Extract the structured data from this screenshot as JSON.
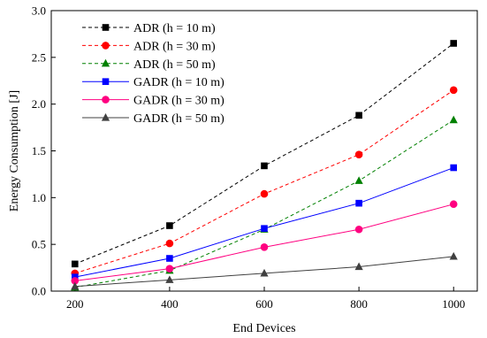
{
  "chart_data": {
    "type": "line",
    "title": "",
    "xlabel": "End Devices",
    "ylabel": "Energy Consumption [J]",
    "xlim": [
      150,
      1050
    ],
    "ylim": [
      0.0,
      3.0
    ],
    "x_ticks": [
      200,
      400,
      600,
      800,
      1000
    ],
    "y_ticks": [
      0.0,
      0.5,
      1.0,
      1.5,
      2.0,
      2.5,
      3.0
    ],
    "x_tick_labels": [
      "200",
      "400",
      "600",
      "800",
      "1000"
    ],
    "y_tick_labels": [
      "0.0",
      "0.5",
      "1.0",
      "1.5",
      "2.0",
      "2.5",
      "3.0"
    ],
    "grid": false,
    "legend_position": "top-left",
    "x": [
      200,
      400,
      600,
      800,
      1000
    ],
    "series": [
      {
        "name": "ADR (h = 10 m)",
        "values": [
          0.29,
          0.7,
          1.34,
          1.88,
          2.65
        ],
        "color": "#000000",
        "marker": "square",
        "dashed": true
      },
      {
        "name": "ADR (h = 30 m)",
        "values": [
          0.19,
          0.51,
          1.04,
          1.46,
          2.15
        ],
        "color": "#ff0000",
        "marker": "circle",
        "dashed": true
      },
      {
        "name": "ADR (h = 50 m)",
        "values": [
          0.04,
          0.22,
          0.66,
          1.18,
          1.83
        ],
        "color": "#008000",
        "marker": "triangle",
        "dashed": true
      },
      {
        "name": "GADR (h = 10 m)",
        "values": [
          0.15,
          0.35,
          0.67,
          0.94,
          1.32
        ],
        "color": "#0000ff",
        "marker": "square",
        "dashed": false
      },
      {
        "name": "GADR (h = 30 m)",
        "values": [
          0.11,
          0.24,
          0.47,
          0.66,
          0.93
        ],
        "color": "#ff0080",
        "marker": "circle",
        "dashed": false
      },
      {
        "name": "GADR (h = 50 m)",
        "values": [
          0.05,
          0.12,
          0.19,
          0.26,
          0.37
        ],
        "color": "#404040",
        "marker": "triangle",
        "dashed": false
      }
    ]
  }
}
